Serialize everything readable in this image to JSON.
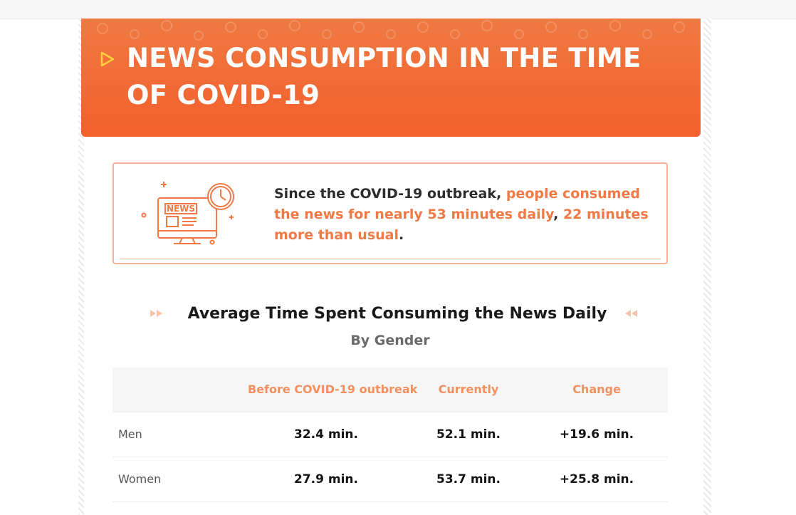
{
  "header": {
    "title": "NEWS CONSUMPTION IN THE TIME OF COVID-19",
    "accent_color": "#f25f2c",
    "icon": "play-triangle-icon"
  },
  "summary": {
    "illustration_icon": "news-monitor-clock-icon",
    "illustration_label": "NEWS",
    "text_plain_1": "Since the COVID-19 outbreak, ",
    "text_highlight_1": "people consumed the news for nearly 53 minutes daily",
    "text_plain_2": ", ",
    "text_highlight_2": "22 minutes more than usual",
    "text_plain_3": ".",
    "highlight_color": "#f07a46"
  },
  "section": {
    "title": "Average Time Spent Consuming the News Daily",
    "subtitle": "By Gender"
  },
  "table": {
    "columns": [
      "",
      "Before COVID-19 outbreak",
      "Currently",
      "Change"
    ],
    "rows": [
      {
        "label": "Men",
        "before": "32.4 min.",
        "current": "52.1 min.",
        "change": "+19.6 min."
      },
      {
        "label": "Women",
        "before": "27.9 min.",
        "current": "53.7 min.",
        "change": "+25.8 min."
      }
    ]
  }
}
